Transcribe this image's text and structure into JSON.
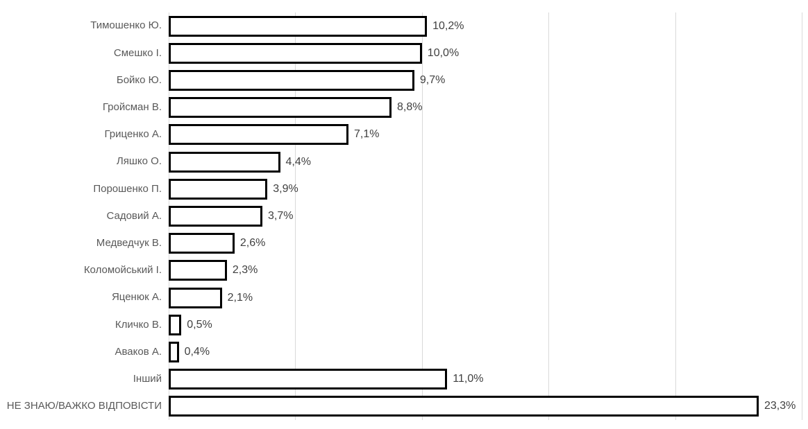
{
  "chart_data": {
    "type": "bar",
    "orientation": "horizontal",
    "title": "",
    "xlabel": "",
    "ylabel": "",
    "categories": [
      "Тимошенко Ю.",
      "Смешко І.",
      "Бойко Ю.",
      "Гройсман В.",
      "Гриценко А.",
      "Ляшко О.",
      "Порошенко П.",
      "Садовий А.",
      "Медведчук В.",
      "Коломойський І.",
      "Яценюк А.",
      "Кличко В.",
      "Аваков А.",
      "Інший",
      "НЕ ЗНАЮ/ВАЖКО ВІДПОВІСТИ"
    ],
    "values": [
      10.2,
      10.0,
      9.7,
      8.8,
      7.1,
      4.4,
      3.9,
      3.7,
      2.6,
      2.3,
      2.1,
      0.5,
      0.4,
      11.0,
      23.3
    ],
    "value_labels": [
      "10,2%",
      "10,0%",
      "9,7%",
      "8,8%",
      "7,1%",
      "4,4%",
      "3,9%",
      "3,7%",
      "2,6%",
      "2,3%",
      "2,1%",
      "0,5%",
      "0,4%",
      "11,0%",
      "23,3%"
    ],
    "xlim": [
      0,
      25
    ],
    "gridline_step": 5,
    "grid": true,
    "legend": false,
    "axis_tick_labels": false,
    "colors": {
      "bar_fill": "#ffffff",
      "bar_border": "#000000",
      "category_label": "#595959",
      "value_label": "#404040",
      "gridline": "#d9d9d9",
      "background": "#ffffff"
    }
  }
}
